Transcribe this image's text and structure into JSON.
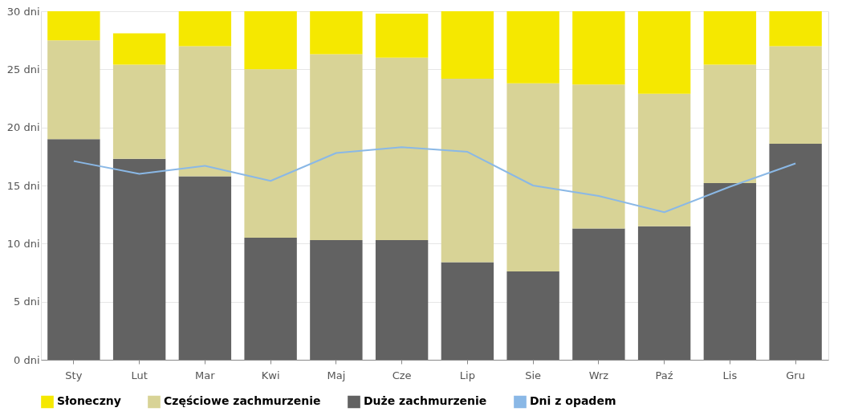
{
  "chart_data": {
    "type": "bar",
    "stacked": true,
    "categories": [
      "Sty",
      "Lut",
      "Mar",
      "Kwi",
      "Maj",
      "Cze",
      "Lip",
      "Sie",
      "Wrz",
      "Paź",
      "Lis",
      "Gru"
    ],
    "series": [
      {
        "name": "Duże zachmurzenie",
        "color": "#626262",
        "values": [
          19.0,
          17.3,
          15.8,
          10.5,
          10.3,
          10.3,
          8.4,
          7.6,
          11.3,
          11.5,
          15.2,
          18.6
        ]
      },
      {
        "name": "Częściowe zachmurzenie",
        "color": "#d8d396",
        "values": [
          8.5,
          8.1,
          11.2,
          14.5,
          16.0,
          15.7,
          15.8,
          16.2,
          12.4,
          11.4,
          10.2,
          8.4
        ]
      },
      {
        "name": "Słoneczny",
        "color": "#f5e800",
        "values": [
          2.5,
          2.7,
          3.0,
          5.0,
          3.7,
          3.8,
          5.8,
          6.2,
          6.3,
          7.1,
          4.6,
          3.0
        ]
      },
      {
        "name": "Dni z opadem",
        "type": "line",
        "color": "#8ab8e6",
        "values": [
          17.1,
          16.0,
          16.7,
          15.4,
          17.8,
          18.3,
          17.9,
          15.0,
          14.1,
          12.7,
          14.9,
          16.9
        ]
      }
    ],
    "ylim": [
      0,
      30
    ],
    "yticks": [
      {
        "value": 0,
        "label": "0 dni"
      },
      {
        "value": 5,
        "label": "5 dni"
      },
      {
        "value": 10,
        "label": "10 dni"
      },
      {
        "value": 15,
        "label": "15 dni"
      },
      {
        "value": 20,
        "label": "20 dni"
      },
      {
        "value": 25,
        "label": "25 dni"
      },
      {
        "value": 30,
        "label": "30 dni"
      }
    ],
    "grid": "y",
    "legend": "bottom",
    "marker": "none",
    "line_style": "solid"
  }
}
